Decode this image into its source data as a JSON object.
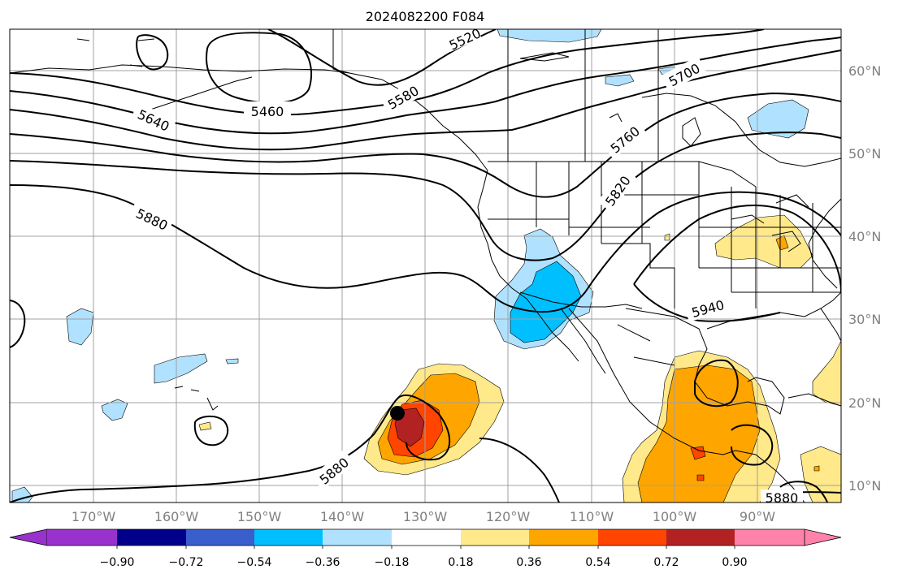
{
  "title": "2024082200 F084",
  "longitude_labels": [
    "170°W",
    "160°W",
    "150°W",
    "140°W",
    "130°W",
    "120°W",
    "110°W",
    "100°W",
    "90°W"
  ],
  "latitude_labels": [
    "60°N",
    "50°N",
    "40°N",
    "30°N",
    "20°N",
    "10°N"
  ],
  "contour_labels": [
    "5460",
    "5520",
    "5580",
    "5640",
    "5700",
    "5760",
    "5820",
    "5880",
    "5880",
    "5880",
    "5940"
  ],
  "colorbar": {
    "ticks": [
      "−0.90",
      "−0.72",
      "−0.54",
      "−0.36",
      "−0.18",
      "0.18",
      "0.36",
      "0.54",
      "0.72",
      "0.90"
    ],
    "colors": [
      "#9932cc",
      "#00008b",
      "#3a5fcd",
      "#00bfff",
      "#b0e2ff",
      "#ffffff",
      "#ffe98a",
      "#ffa500",
      "#ff4500",
      "#b22222",
      "#ff82ab"
    ]
  },
  "marker": "storm-center-dot"
}
